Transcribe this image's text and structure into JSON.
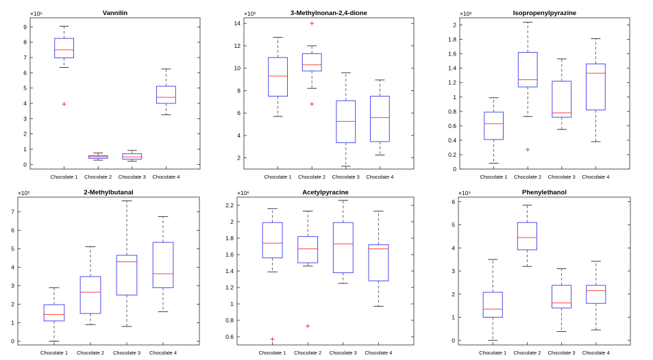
{
  "chart_data": [
    {
      "type": "boxplot",
      "title": "Vannilin",
      "exponent_label": "×10⁶",
      "ylim": [
        -0.3,
        9.6
      ],
      "yticks": [
        0,
        1,
        2,
        3,
        4,
        5,
        6,
        7,
        8,
        9
      ],
      "categories": [
        "Chocolate 1",
        "Chocolate 2",
        "Chocolate 3",
        "Chocolate 4"
      ],
      "boxes": [
        {
          "whisker_low": 6.35,
          "q1": 6.98,
          "median": 7.5,
          "q3": 8.25,
          "whisker_high": 9.05,
          "outliers": [
            3.95
          ]
        },
        {
          "whisker_low": 0.28,
          "q1": 0.4,
          "median": 0.5,
          "q3": 0.57,
          "whisker_high": 0.75,
          "outliers": []
        },
        {
          "whisker_low": 0.22,
          "q1": 0.35,
          "median": 0.5,
          "q3": 0.7,
          "whisker_high": 0.92,
          "outliers": []
        },
        {
          "whisker_low": 3.25,
          "q1": 4.0,
          "median": 4.4,
          "q3": 5.12,
          "whisker_high": 6.25,
          "outliers": []
        }
      ]
    },
    {
      "type": "boxplot",
      "title": "3-Methylnonan-2,4-dione",
      "exponent_label": "×10⁵",
      "ylim": [
        1.0,
        14.5
      ],
      "yticks": [
        2,
        4,
        6,
        8,
        10,
        12,
        14
      ],
      "categories": [
        "Chocolate 1",
        "Chocolate 2",
        "Chocolate 3",
        "Chocolate 4"
      ],
      "boxes": [
        {
          "whisker_low": 5.7,
          "q1": 7.5,
          "median": 9.3,
          "q3": 10.95,
          "whisker_high": 12.75,
          "outliers": []
        },
        {
          "whisker_low": 8.2,
          "q1": 9.75,
          "median": 10.3,
          "q3": 11.3,
          "whisker_high": 12.0,
          "outliers": [
            14.0,
            6.8
          ]
        },
        {
          "whisker_low": 1.25,
          "q1": 3.35,
          "median": 5.25,
          "q3": 7.1,
          "whisker_high": 9.6,
          "outliers": []
        },
        {
          "whisker_low": 2.25,
          "q1": 3.45,
          "median": 5.6,
          "q3": 7.5,
          "whisker_high": 8.95,
          "outliers": []
        }
      ]
    },
    {
      "type": "boxplot",
      "title": "Isopropenylpyrazine",
      "exponent_label": "×10⁶",
      "ylim": [
        0,
        2.1
      ],
      "yticks": [
        0,
        0.2,
        0.4,
        0.6,
        0.8,
        1,
        1.2,
        1.4,
        1.6,
        1.8,
        2
      ],
      "categories": [
        "Chocolate 1",
        "Chocolate 2",
        "Chocolate 3",
        "Chocolate 4"
      ],
      "boxes": [
        {
          "whisker_low": 0.08,
          "q1": 0.41,
          "median": 0.63,
          "q3": 0.79,
          "whisker_high": 0.99,
          "outliers": []
        },
        {
          "whisker_low": 0.73,
          "q1": 1.14,
          "median": 1.24,
          "q3": 1.62,
          "whisker_high": 2.04,
          "outliers": [
            0.27
          ]
        },
        {
          "whisker_low": 0.55,
          "q1": 0.72,
          "median": 0.78,
          "q3": 1.22,
          "whisker_high": 1.53,
          "outliers": []
        },
        {
          "whisker_low": 0.38,
          "q1": 0.82,
          "median": 1.33,
          "q3": 1.46,
          "whisker_high": 1.81,
          "outliers": []
        }
      ]
    },
    {
      "type": "boxplot",
      "title": "2-Methylbutanal",
      "exponent_label": "×10⁵",
      "ylim": [
        -0.2,
        7.8
      ],
      "yticks": [
        0,
        1,
        2,
        3,
        4,
        5,
        6,
        7
      ],
      "categories": [
        "Chocolate 1",
        "Chocolate 2",
        "Chocolate 3",
        "Chocolate 4"
      ],
      "boxes": [
        {
          "whisker_low": 0.0,
          "q1": 1.1,
          "median": 1.45,
          "q3": 1.98,
          "whisker_high": 2.9,
          "outliers": []
        },
        {
          "whisker_low": 0.9,
          "q1": 1.5,
          "median": 2.65,
          "q3": 3.5,
          "whisker_high": 5.12,
          "outliers": []
        },
        {
          "whisker_low": 0.8,
          "q1": 2.5,
          "median": 4.3,
          "q3": 4.65,
          "whisker_high": 7.6,
          "outliers": []
        },
        {
          "whisker_low": 1.6,
          "q1": 2.9,
          "median": 3.65,
          "q3": 5.35,
          "whisker_high": 6.75,
          "outliers": []
        }
      ]
    },
    {
      "type": "boxplot",
      "title": "Acetylpyracine",
      "exponent_label": "×10⁶",
      "ylim": [
        0.5,
        2.3
      ],
      "yticks": [
        0.6,
        0.8,
        1,
        1.2,
        1.4,
        1.6,
        1.8,
        2,
        2.2
      ],
      "categories": [
        "Chocolate 1",
        "Chocolate 2",
        "Chocolate 3",
        "Chocolate 4"
      ],
      "boxes": [
        {
          "whisker_low": 1.39,
          "q1": 1.56,
          "median": 1.74,
          "q3": 1.99,
          "whisker_high": 2.16,
          "outliers": [
            0.57
          ]
        },
        {
          "whisker_low": 1.46,
          "q1": 1.5,
          "median": 1.67,
          "q3": 1.82,
          "whisker_high": 2.13,
          "outliers": [
            0.73
          ]
        },
        {
          "whisker_low": 1.25,
          "q1": 1.38,
          "median": 1.73,
          "q3": 1.99,
          "whisker_high": 2.26,
          "outliers": []
        },
        {
          "whisker_low": 0.97,
          "q1": 1.28,
          "median": 1.67,
          "q3": 1.72,
          "whisker_high": 2.13,
          "outliers": []
        }
      ]
    },
    {
      "type": "boxplot",
      "title": "Phenylethanol",
      "exponent_label": "×10⁴",
      "ylim": [
        -0.2,
        6.2
      ],
      "yticks": [
        0,
        1,
        2,
        3,
        4,
        5,
        6
      ],
      "categories": [
        "Chocolate 1",
        "Chocolate 2",
        "Chocolate 3",
        "Chocolate 4"
      ],
      "boxes": [
        {
          "whisker_low": 0.0,
          "q1": 1.0,
          "median": 1.35,
          "q3": 2.08,
          "whisker_high": 3.5,
          "outliers": []
        },
        {
          "whisker_low": 3.2,
          "q1": 3.92,
          "median": 4.45,
          "q3": 5.1,
          "whisker_high": 5.85,
          "outliers": []
        },
        {
          "whisker_low": 0.38,
          "q1": 1.4,
          "median": 1.62,
          "q3": 2.38,
          "whisker_high": 3.1,
          "outliers": []
        },
        {
          "whisker_low": 0.45,
          "q1": 1.6,
          "median": 2.15,
          "q3": 2.38,
          "whisker_high": 3.42,
          "outliers": []
        }
      ]
    }
  ],
  "colors": {
    "box": "#4a4af0",
    "median": "#ff4040",
    "whisker": "#555555",
    "outlier": "#ff3030",
    "axis": "#262626",
    "text": "#000000"
  }
}
